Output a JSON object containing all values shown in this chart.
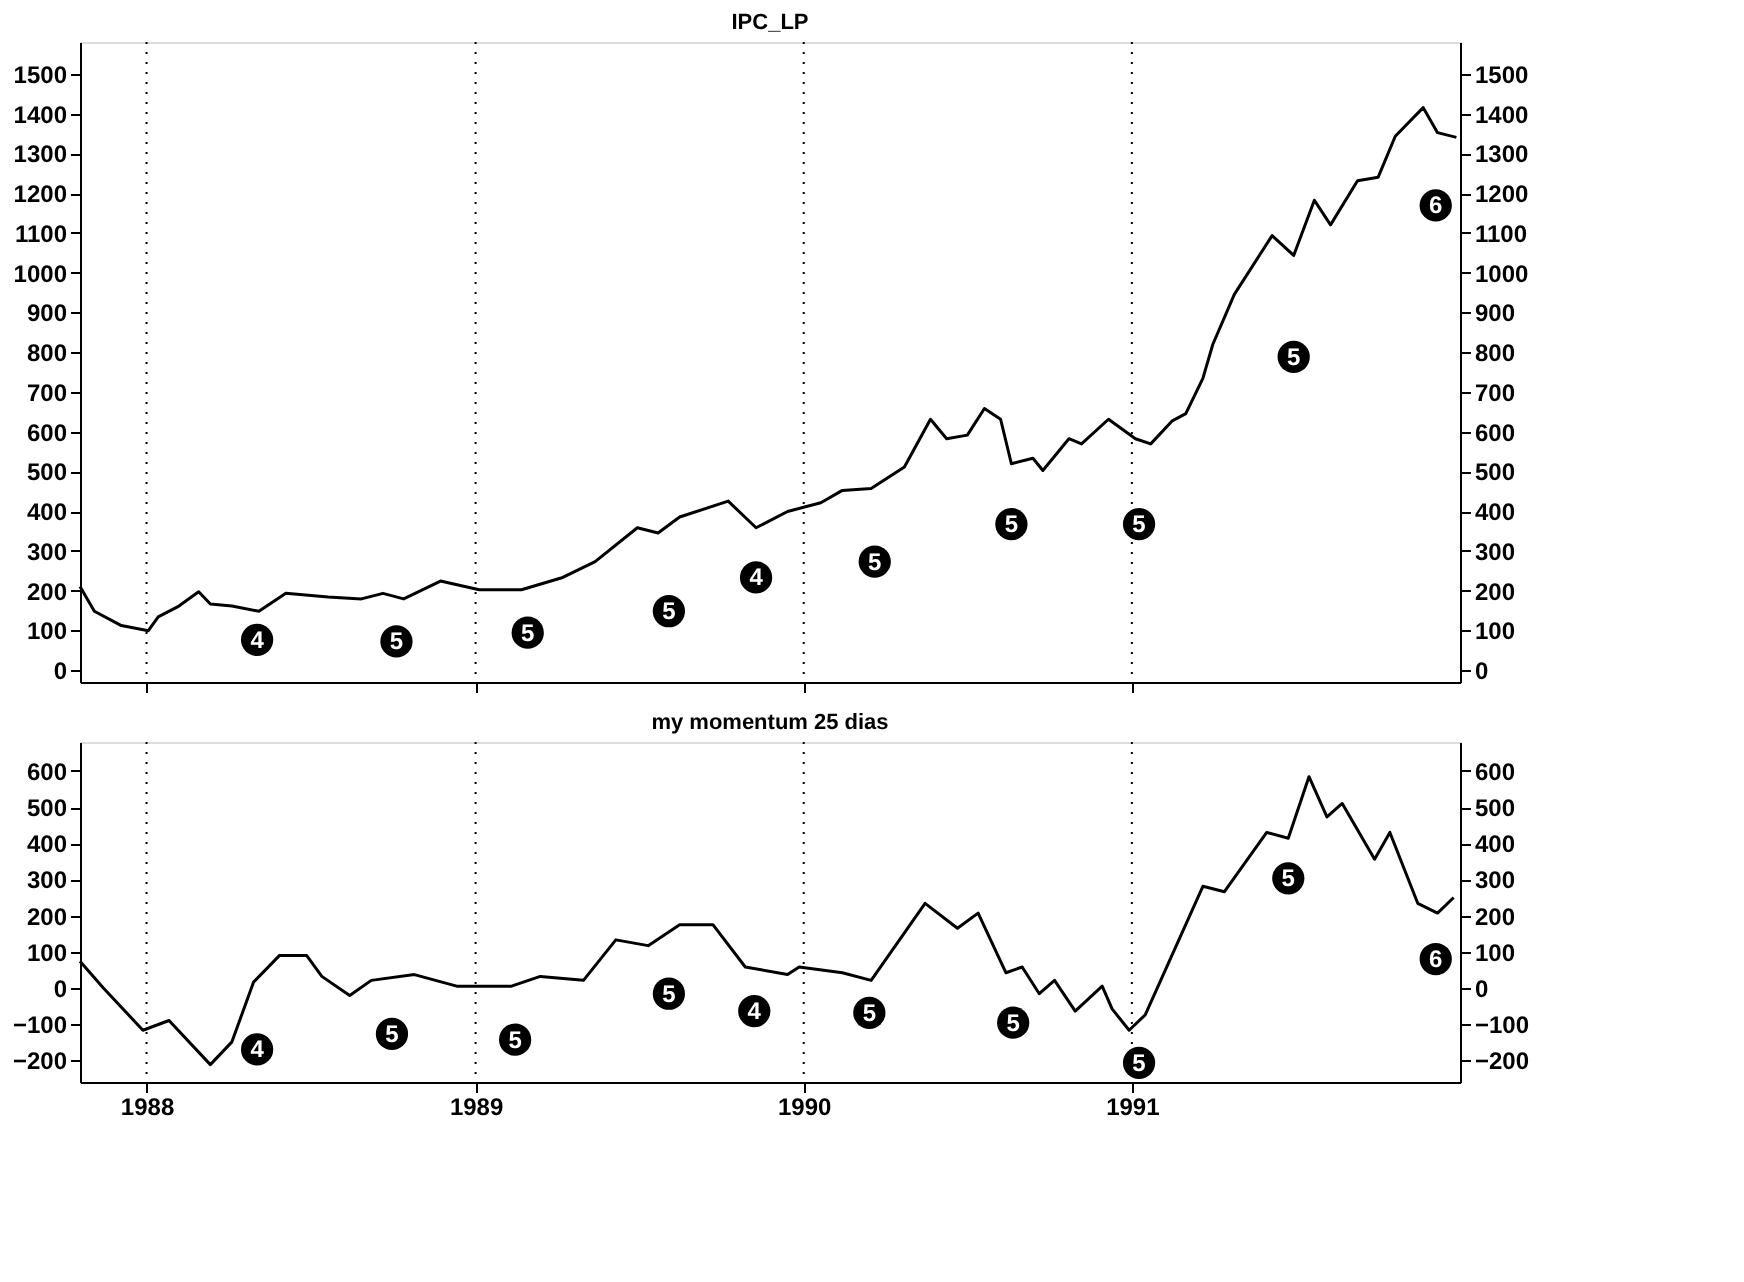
{
  "chart_data": [
    {
      "type": "line",
      "title": "IPC_LP",
      "x": [
        "1987-10-19",
        "1987-11-04",
        "1987-12-04",
        "1988-01-03",
        "1988-01-14",
        "1988-02-06",
        "1988-02-28",
        "1988-03-12",
        "1988-04-05",
        "1988-05-05",
        "1988-06-04",
        "1988-07-21",
        "1988-08-27",
        "1988-09-20",
        "1988-10-13",
        "1988-11-23",
        "1989-01-05",
        "1989-02-21",
        "1989-04-08",
        "1989-05-14",
        "1989-06-30",
        "1989-07-23",
        "1989-08-16",
        "1989-10-09",
        "1989-11-09",
        "1989-12-14",
        "1990-01-20",
        "1990-02-13",
        "1990-03-17",
        "1990-04-23",
        "1990-05-22",
        "1990-06-09",
        "1990-07-02",
        "1990-07-21",
        "1990-08-08",
        "1990-08-20",
        "1990-09-13",
        "1990-09-24",
        "1990-10-23",
        "1990-11-06",
        "1990-12-06",
        "1991-01-05",
        "1991-01-22",
        "1991-02-15",
        "1991-03-02",
        "1991-03-21",
        "1991-04-01",
        "1991-04-25",
        "1991-06-06",
        "1991-06-30",
        "1991-07-23",
        "1991-08-10",
        "1991-09-09",
        "1991-10-02",
        "1991-10-21",
        "1991-11-21",
        "1991-12-07",
        "1991-12-28"
      ],
      "series": [
        {
          "color": "#000000",
          "values": [
            210,
            148,
            112,
            99,
            134,
            161,
            197,
            166,
            161,
            148,
            193,
            184,
            179,
            193,
            179,
            224,
            202,
            202,
            233,
            273,
            358,
            345,
            385,
            425,
            358,
            399,
            421,
            452,
            457,
            511,
            631,
            582,
            591,
            658,
            631,
            519,
            533,
            502,
            582,
            569,
            631,
            582,
            569,
            627,
            645,
            734,
            819,
            945,
            1093,
            1043,
            1182,
            1120,
            1231,
            1240,
            1343,
            1415,
            1352,
            1340
          ]
        }
      ],
      "xlim": [
        "1987-10-19",
        "1992-01-01"
      ],
      "xticks": [
        {
          "value": "1988-01-01",
          "label": null
        },
        {
          "value": "1989-01-01",
          "label": null
        },
        {
          "value": "1990-01-01",
          "label": null
        },
        {
          "value": "1991-01-01",
          "label": null
        }
      ],
      "ylim": [
        -30,
        1580
      ],
      "yticks": [
        0,
        100,
        200,
        300,
        400,
        500,
        600,
        700,
        800,
        900,
        1000,
        1100,
        1200,
        1300,
        1400,
        1500
      ],
      "y2lim": [
        -30,
        1580
      ],
      "y2ticks": [
        0,
        100,
        200,
        300,
        400,
        500,
        600,
        700,
        800,
        900,
        1000,
        1100,
        1200,
        1300,
        1400,
        1500
      ],
      "tick_labels": "y",
      "grid": false,
      "marker": "none",
      "line_style": "solid",
      "ref_lines": [
        {
          "axis": "x",
          "value": "1988-01-01",
          "label": null,
          "color": "#000000",
          "line_style": "dotted"
        },
        {
          "axis": "x",
          "value": "1989-01-01",
          "label": null,
          "color": "#000000",
          "line_style": "dotted"
        },
        {
          "axis": "x",
          "value": "1990-01-01",
          "label": null,
          "color": "#000000",
          "line_style": "dotted"
        },
        {
          "axis": "x",
          "value": "1991-01-01",
          "label": null,
          "color": "#000000",
          "line_style": "dotted"
        }
      ],
      "annotations": [
        {
          "text": "4",
          "x": "1988-05-03",
          "y": 76
        },
        {
          "text": "5",
          "x": "1988-10-05",
          "y": 72
        },
        {
          "text": "5",
          "x": "1989-02-28",
          "y": 94
        },
        {
          "text": "5",
          "x": "1989-08-04",
          "y": 148
        },
        {
          "text": "4",
          "x": "1989-11-09",
          "y": 233
        },
        {
          "text": "5",
          "x": "1990-03-21",
          "y": 273
        },
        {
          "text": "5",
          "x": "1990-08-20",
          "y": 367
        },
        {
          "text": "5",
          "x": "1991-01-09",
          "y": 367
        },
        {
          "text": "5",
          "x": "1991-06-30",
          "y": 788
        },
        {
          "text": "6",
          "x": "1991-12-05",
          "y": 1169
        }
      ]
    },
    {
      "type": "line",
      "title": "my momentum 25 dias",
      "x": [
        "1987-10-19",
        "1987-11-14",
        "1987-12-28",
        "1988-01-26",
        "1988-03-12",
        "1988-04-05",
        "1988-04-29",
        "1988-05-28",
        "1988-06-27",
        "1988-07-14",
        "1988-08-14",
        "1988-09-07",
        "1988-10-25",
        "1988-12-11",
        "1989-02-10",
        "1989-03-14",
        "1989-05-01",
        "1989-06-06",
        "1989-07-12",
        "1989-08-16",
        "1989-09-22",
        "1989-10-28",
        "1989-12-14",
        "1989-12-27",
        "1990-02-13",
        "1990-03-17",
        "1990-05-16",
        "1990-06-21",
        "1990-07-14",
        "1990-08-14",
        "1990-09-01",
        "1990-09-20",
        "1990-10-07",
        "1990-10-30",
        "1990-11-29",
        "1990-12-10",
        "1990-12-29",
        "1991-01-16",
        "1991-03-21",
        "1991-04-14",
        "1991-05-31",
        "1991-06-24",
        "1991-07-17",
        "1991-08-06",
        "1991-08-23",
        "1991-09-28",
        "1991-10-15",
        "1991-11-15",
        "1991-12-07",
        "1991-12-25"
      ],
      "series": [
        {
          "color": "#000000",
          "values": [
            74,
            0,
            -117,
            -90,
            -212,
            -149,
            16,
            90,
            90,
            32,
            -21,
            21,
            37,
            5,
            5,
            32,
            21,
            133,
            117,
            175,
            175,
            58,
            37,
            58,
            42,
            21,
            234,
            165,
            207,
            42,
            58,
            -16,
            21,
            -64,
            5,
            -58,
            -117,
            -74,
            281,
            266,
            430,
            414,
            584,
            473,
            510,
            356,
            430,
            234,
            207,
            250
          ]
        }
      ],
      "xlim": [
        "1987-10-19",
        "1992-01-01"
      ],
      "xticks": [
        {
          "value": "1988-01-01",
          "label": "1988"
        },
        {
          "value": "1989-01-01",
          "label": "1989"
        },
        {
          "value": "1990-01-01",
          "label": "1990"
        },
        {
          "value": "1991-01-01",
          "label": "1991"
        }
      ],
      "ylim": [
        -260,
        680
      ],
      "yticks": [
        -200,
        -100,
        0,
        100,
        200,
        300,
        400,
        500,
        600
      ],
      "y2lim": [
        -260,
        680
      ],
      "y2ticks": [
        -200,
        -100,
        0,
        100,
        200,
        300,
        400,
        500,
        600
      ],
      "grid": false,
      "marker": "none",
      "line_style": "solid",
      "ref_lines": [
        {
          "axis": "x",
          "value": "1988-01-01",
          "label": null,
          "color": "#000000",
          "line_style": "dotted"
        },
        {
          "axis": "x",
          "value": "1989-01-01",
          "label": null,
          "color": "#000000",
          "line_style": "dotted"
        },
        {
          "axis": "x",
          "value": "1990-01-01",
          "label": null,
          "color": "#000000",
          "line_style": "dotted"
        },
        {
          "axis": "x",
          "value": "1991-01-01",
          "label": null,
          "color": "#000000",
          "line_style": "dotted"
        }
      ],
      "annotations": [
        {
          "text": "4",
          "x": "1988-05-03",
          "y": -170
        },
        {
          "text": "5",
          "x": "1988-09-30",
          "y": -127
        },
        {
          "text": "5",
          "x": "1989-02-14",
          "y": -143
        },
        {
          "text": "5",
          "x": "1989-08-04",
          "y": -16
        },
        {
          "text": "4",
          "x": "1989-11-07",
          "y": -64
        },
        {
          "text": "5",
          "x": "1990-03-15",
          "y": -69
        },
        {
          "text": "5",
          "x": "1990-08-22",
          "y": -96
        },
        {
          "text": "5",
          "x": "1991-01-09",
          "y": -207
        },
        {
          "text": "5",
          "x": "1991-06-24",
          "y": 303
        },
        {
          "text": "6",
          "x": "1991-12-05",
          "y": 80
        }
      ]
    }
  ]
}
